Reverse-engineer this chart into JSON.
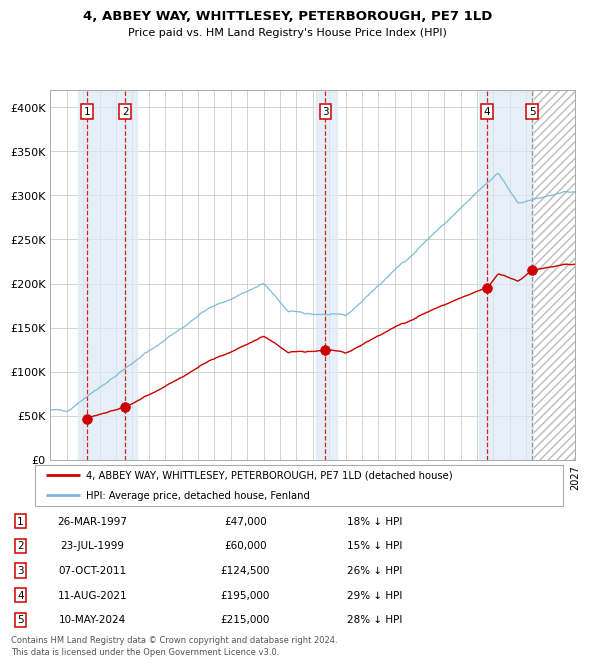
{
  "title1": "4, ABBEY WAY, WHITTLESEY, PETERBOROUGH, PE7 1LD",
  "title2": "Price paid vs. HM Land Registry's House Price Index (HPI)",
  "ylim": [
    0,
    420000
  ],
  "yticks": [
    0,
    50000,
    100000,
    150000,
    200000,
    250000,
    300000,
    350000,
    400000
  ],
  "ytick_labels": [
    "£0",
    "£50K",
    "£100K",
    "£150K",
    "£200K",
    "£250K",
    "£300K",
    "£350K",
    "£400K"
  ],
  "xlim": [
    1995,
    2027
  ],
  "sales": [
    {
      "num": 1,
      "date_str": "26-MAR-1997",
      "year": 1997.23,
      "price": 47000,
      "pct": "18% ↓ HPI"
    },
    {
      "num": 2,
      "date_str": "23-JUL-1999",
      "year": 1999.56,
      "price": 60000,
      "pct": "15% ↓ HPI"
    },
    {
      "num": 3,
      "date_str": "07-OCT-2011",
      "year": 2011.77,
      "price": 124500,
      "pct": "26% ↓ HPI"
    },
    {
      "num": 4,
      "date_str": "11-AUG-2021",
      "year": 2021.61,
      "price": 195000,
      "pct": "29% ↓ HPI"
    },
    {
      "num": 5,
      "date_str": "10-MAY-2024",
      "year": 2024.36,
      "price": 215000,
      "pct": "28% ↓ HPI"
    }
  ],
  "legend_line1": "4, ABBEY WAY, WHITTLESEY, PETERBOROUGH, PE7 1LD (detached house)",
  "legend_line2": "HPI: Average price, detached house, Fenland",
  "footer1": "Contains HM Land Registry data © Crown copyright and database right 2024.",
  "footer2": "This data is licensed under the Open Government Licence v3.0.",
  "hpi_color": "#7ab8d9",
  "price_color": "#cc0000",
  "bg_color": "#ffffff",
  "grid_color": "#cccccc",
  "shade_color": "#dce9f5",
  "future_start": 2024.5
}
